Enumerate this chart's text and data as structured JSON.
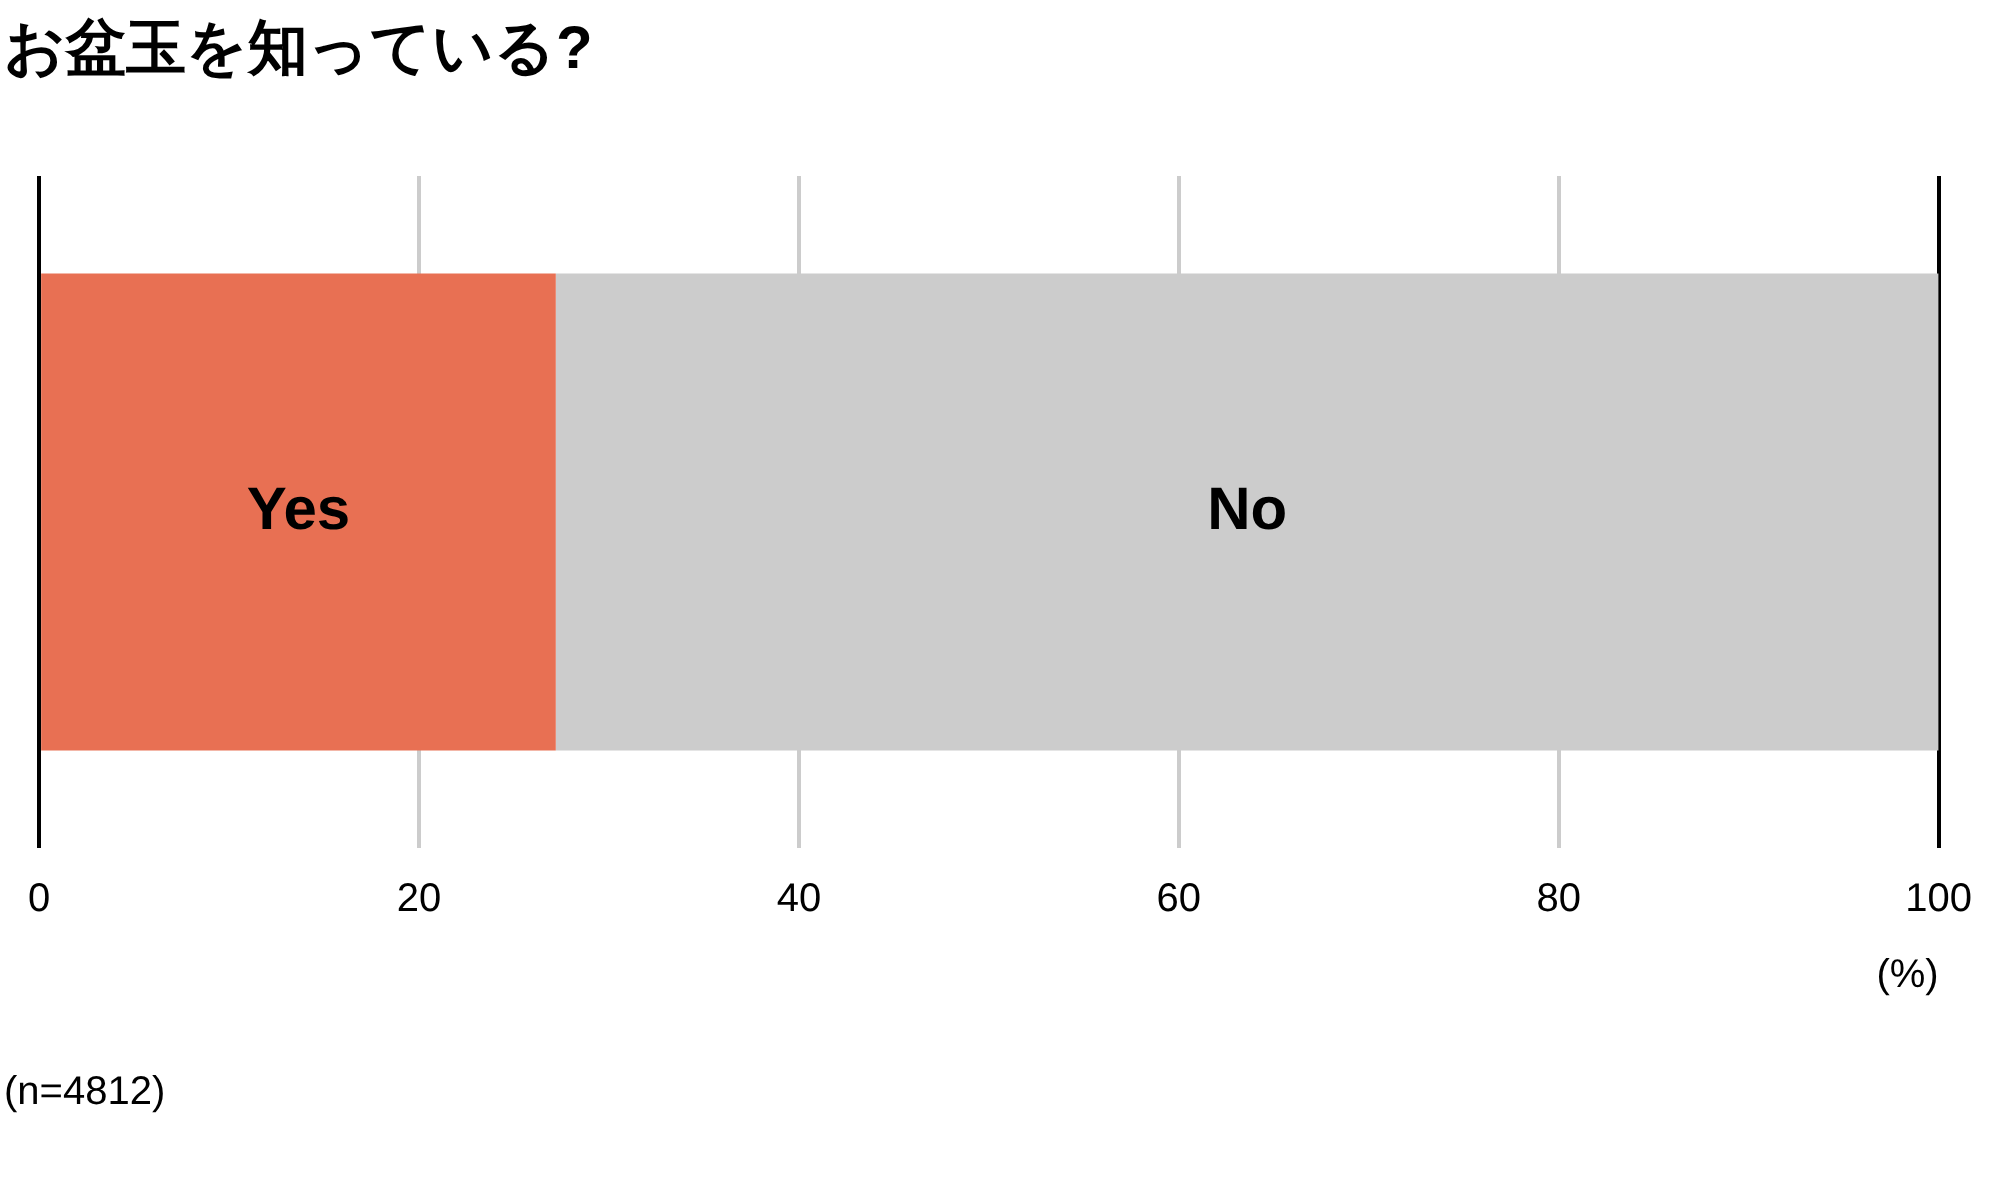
{
  "chart_data": {
    "type": "bar",
    "title": "お盆玉を知っている?",
    "orientation": "horizontal",
    "stacked": true,
    "categories": [
      null
    ],
    "series": [
      {
        "name": "Yes",
        "color": "#e87053",
        "values": [
          27.2
        ]
      },
      {
        "name": "No",
        "color": "#cccccc",
        "values": [
          72.8
        ]
      }
    ],
    "xlim": [
      0,
      100
    ],
    "xticks": [
      0,
      20,
      40,
      60,
      80,
      100
    ],
    "xlabel": "(%)",
    "grid": "x",
    "legend": false,
    "tick_labels": "x",
    "annotations": [
      "(n=4812)"
    ]
  }
}
